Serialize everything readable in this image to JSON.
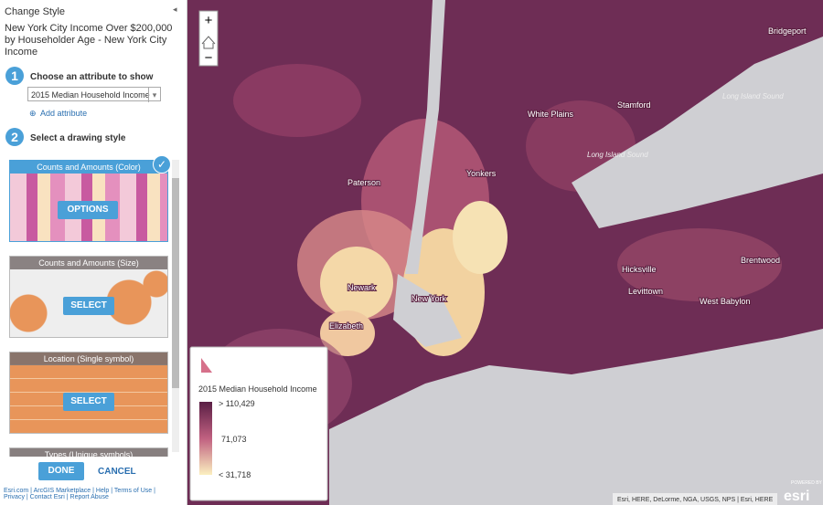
{
  "panel": {
    "header": "Change Style",
    "title": "New York City Income Over $200,000 by Householder Age - New York City Income",
    "step1": {
      "number": "1",
      "label": "Choose an attribute to show",
      "select": "2015 Median Household Income",
      "add": "Add attribute"
    },
    "step2": {
      "number": "2",
      "label": "Select a drawing style"
    },
    "styles": [
      {
        "name": "Counts and Amounts (Color)",
        "button": "OPTIONS"
      },
      {
        "name": "Counts and Amounts (Size)",
        "button": "SELECT"
      },
      {
        "name": "Location (Single symbol)",
        "button": "SELECT"
      },
      {
        "name": "Types (Unique symbols)"
      }
    ],
    "done": "DONE",
    "cancel": "CANCEL",
    "footer_links": [
      "Esri.com",
      "ArcGIS Marketplace",
      "Help",
      "Terms of Use",
      "Privacy",
      "Contact Esri",
      "Report Abuse"
    ]
  },
  "map": {
    "zoom_in": "+",
    "zoom_out": "−",
    "labels": [
      "Bridgeport",
      "Stamford",
      "White Plains",
      "Long Island Sound",
      "Long Island Sound",
      "Paterson",
      "Yonkers",
      "Newark",
      "New York",
      "Elizabeth",
      "Hicksville",
      "Levittown",
      "Brentwood",
      "West Babylon"
    ],
    "legend": {
      "title": "2015 Median Household Income",
      "high": "> 110,429",
      "mid": "71,073",
      "low": "< 31,718"
    },
    "attribution": "Esri, HERE, DeLorme, NGA, USGS, NPS | Esri, HERE",
    "powered": "POWERED BY",
    "logo": "esri"
  }
}
